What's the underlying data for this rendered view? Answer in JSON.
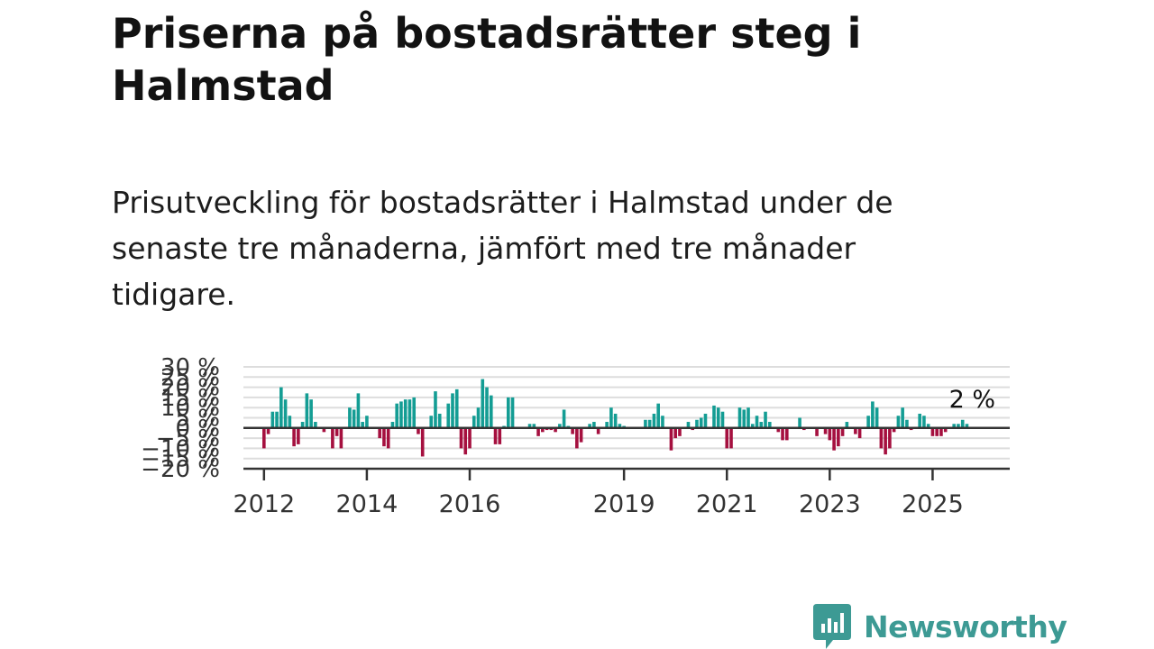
{
  "header": {
    "title": "Priserna på bostadsrätter steg i Halmstad",
    "subtitle": "Prisutveckling för bostadsrätter i Halmstad under de senaste tre månaderna, jämfört med tre månader tidigare."
  },
  "brand": {
    "name": "Newsworthy",
    "color": "#3d9a94"
  },
  "colors": {
    "positive": "#149d94",
    "negative": "#a5103f",
    "grid": "#dddddd",
    "zero_line": "#333333"
  },
  "chart_data": {
    "type": "bar",
    "ylim": [
      -20,
      30
    ],
    "y_ticks": [
      -20,
      -15,
      -10,
      -5,
      0,
      5,
      10,
      15,
      20,
      25,
      30
    ],
    "y_tick_labels": [
      "−20 %",
      "−15 %",
      "−10 %",
      "−5 %",
      "0 %",
      "5 %",
      "10 %",
      "15 %",
      "20 %",
      "25 %",
      "30 %"
    ],
    "x_ticks": [
      "2012",
      "2014",
      "2016",
      "2019",
      "2021",
      "2023",
      "2025"
    ],
    "grid": true,
    "last_value_label": "2 %",
    "x": [
      "2012-01",
      "2012-02",
      "2012-03",
      "2012-04",
      "2012-05",
      "2012-06",
      "2012-07",
      "2012-08",
      "2012-09",
      "2012-10",
      "2012-11",
      "2012-12",
      "2013-01",
      "2013-02",
      "2013-03",
      "2013-04",
      "2013-05",
      "2013-06",
      "2013-07",
      "2013-08",
      "2013-09",
      "2013-10",
      "2013-11",
      "2013-12",
      "2014-01",
      "2014-02",
      "2014-03",
      "2014-04",
      "2014-05",
      "2014-06",
      "2014-07",
      "2014-08",
      "2014-09",
      "2014-10",
      "2014-11",
      "2014-12",
      "2015-01",
      "2015-02",
      "2015-03",
      "2015-04",
      "2015-05",
      "2015-06",
      "2015-07",
      "2015-08",
      "2015-09",
      "2015-10",
      "2015-11",
      "2015-12",
      "2016-01",
      "2016-02",
      "2016-03",
      "2016-04",
      "2016-05",
      "2016-06",
      "2016-07",
      "2016-08",
      "2016-09",
      "2016-10",
      "2016-11",
      "2016-12",
      "2017-01",
      "2017-02",
      "2017-03",
      "2017-04",
      "2017-05",
      "2017-06",
      "2017-07",
      "2017-08",
      "2017-09",
      "2017-10",
      "2017-11",
      "2017-12",
      "2018-01",
      "2018-02",
      "2018-03",
      "2018-04",
      "2018-05",
      "2018-06",
      "2018-07",
      "2018-08",
      "2018-09",
      "2018-10",
      "2018-11",
      "2018-12",
      "2019-01",
      "2019-02",
      "2019-03",
      "2019-04",
      "2019-05",
      "2019-06",
      "2019-07",
      "2019-08",
      "2019-09",
      "2019-10",
      "2019-11",
      "2019-12",
      "2020-01",
      "2020-02",
      "2020-03",
      "2020-04",
      "2020-05",
      "2020-06",
      "2020-07",
      "2020-08",
      "2020-09",
      "2020-10",
      "2020-11",
      "2020-12",
      "2021-01",
      "2021-02",
      "2021-03",
      "2021-04",
      "2021-05",
      "2021-06",
      "2021-07",
      "2021-08",
      "2021-09",
      "2021-10",
      "2021-11",
      "2021-12",
      "2022-01",
      "2022-02",
      "2022-03",
      "2022-04",
      "2022-05",
      "2022-06",
      "2022-07",
      "2022-08",
      "2022-09",
      "2022-10",
      "2022-11",
      "2022-12",
      "2023-01",
      "2023-02",
      "2023-03",
      "2023-04",
      "2023-05",
      "2023-06",
      "2023-07",
      "2023-08",
      "2023-09",
      "2023-10",
      "2023-11",
      "2023-12",
      "2024-01",
      "2024-02",
      "2024-03",
      "2024-04",
      "2024-05",
      "2024-06",
      "2024-07",
      "2024-08",
      "2024-09",
      "2024-10",
      "2024-11",
      "2024-12",
      "2025-01",
      "2025-02",
      "2025-03",
      "2025-04",
      "2025-05",
      "2025-06",
      "2025-07",
      "2025-08",
      "2025-09"
    ],
    "values": [
      -10,
      -3,
      8,
      8,
      20,
      14,
      6,
      -9,
      -8,
      3,
      17,
      14,
      3,
      0,
      -2,
      0,
      -10,
      -4,
      -10,
      0,
      10,
      9,
      17,
      3,
      6,
      0,
      0,
      -5,
      -9,
      -10,
      3,
      12,
      13,
      14,
      14,
      15,
      -3,
      -14,
      0,
      6,
      18,
      7,
      0,
      12,
      17,
      19,
      -10,
      -13,
      -10,
      6,
      10,
      24,
      20,
      16,
      -8,
      -8,
      1,
      15,
      15,
      0,
      0,
      0,
      2,
      2,
      -4,
      -2,
      -1,
      -1,
      -2,
      2,
      9,
      1,
      -3,
      -10,
      -7,
      0,
      2,
      3,
      -3,
      0,
      3,
      10,
      7,
      2,
      1,
      0,
      0,
      0,
      0,
      4,
      4,
      7,
      12,
      6,
      0,
      -11,
      -5,
      -4,
      0,
      3,
      -1,
      4,
      5,
      7,
      0,
      11,
      10,
      8,
      -10,
      -10,
      0,
      10,
      9,
      10,
      2,
      6,
      3,
      8,
      3,
      0,
      -2,
      -6,
      -6,
      0,
      0,
      5,
      -1,
      0,
      0,
      -4,
      0,
      -3,
      -6,
      -11,
      -9,
      -4,
      3,
      0,
      -3,
      -5,
      0,
      6,
      13,
      10,
      -10,
      -13,
      -10,
      -2,
      6,
      10,
      4,
      -1,
      0,
      7,
      6,
      2,
      -4,
      -4,
      -4,
      -2,
      0,
      2,
      2,
      4,
      2
    ]
  }
}
